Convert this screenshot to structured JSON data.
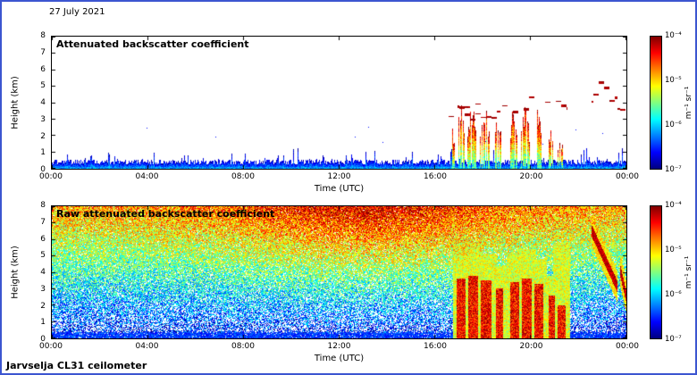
{
  "header": {
    "date": "27 July 2021"
  },
  "footer": {
    "instrument": "Jarvselja CL31 ceilometer"
  },
  "frame": {
    "border_color": "#3c55d0",
    "background": "#ffffff"
  },
  "axes": {
    "xlabel": "Time (UTC)",
    "ylabel": "Height (km)",
    "x_ticks": [
      "00:00",
      "04:00",
      "08:00",
      "12:00",
      "16:00",
      "20:00",
      "00:00"
    ],
    "y_ticks": [
      "0",
      "1",
      "2",
      "3",
      "4",
      "5",
      "6",
      "7",
      "8"
    ]
  },
  "colorbar": {
    "unit": "m⁻¹ sr⁻¹",
    "ticks": [
      "10⁻⁴",
      "10⁻⁵",
      "10⁻⁶",
      "10⁻⁷"
    ],
    "scale_min": 1e-07,
    "scale_max": 0.0001,
    "colormap": "jet",
    "jet_stops_top_to_bottom": [
      "#7f0000",
      "#ff0000",
      "#ff8000",
      "#ffff00",
      "#80ff80",
      "#00ffff",
      "#0080ff",
      "#0000ff",
      "#000080"
    ]
  },
  "chart_data": [
    {
      "type": "heatmap",
      "title": "Attenuated backscatter coefficient",
      "xlabel": "Time (UTC)",
      "ylabel": "Height (km)",
      "x_range_hours": [
        0,
        24
      ],
      "y_range_km": [
        0,
        8
      ],
      "color_scale": {
        "type": "log",
        "min": 1e-07,
        "max": 0.0001,
        "unit": "m-1 sr-1",
        "colormap": "jet"
      },
      "render_seed": 7,
      "features": {
        "aerosol_layer": {
          "start_h": 0,
          "end_h": 24,
          "top_km": 0.4,
          "typical_value": 2e-06
        },
        "plumes": [
          {
            "center_h": 16.75,
            "width_h": 0.2,
            "top_km": 2.2
          },
          {
            "center_h": 17.1,
            "width_h": 0.3,
            "top_km": 3.4
          },
          {
            "center_h": 17.55,
            "width_h": 0.35,
            "top_km": 3.7
          },
          {
            "center_h": 18.1,
            "width_h": 0.4,
            "top_km": 3.5
          },
          {
            "center_h": 18.65,
            "width_h": 0.3,
            "top_km": 3.0
          },
          {
            "center_h": 19.3,
            "width_h": 0.3,
            "top_km": 3.3
          },
          {
            "center_h": 19.8,
            "width_h": 0.35,
            "top_km": 3.6
          },
          {
            "center_h": 20.3,
            "width_h": 0.3,
            "top_km": 3.2
          },
          {
            "center_h": 20.85,
            "width_h": 0.2,
            "top_km": 2.4
          },
          {
            "center_h": 21.25,
            "width_h": 0.2,
            "top_km": 1.8
          }
        ],
        "clouds": [
          {
            "start_h": 16.5,
            "end_h": 21.5,
            "base_km": 3.0,
            "top_km": 4.5,
            "density": 0.5,
            "typical_value": 0.0001
          },
          {
            "start_h": 17.0,
            "end_h": 18.7,
            "base_km": 2.3,
            "top_km": 3.9,
            "density": 0.8,
            "typical_value": 0.0001
          },
          {
            "start_h": 22.6,
            "end_h": 23.6,
            "base_km": 4.0,
            "top_km": 5.3,
            "density": 0.8,
            "typical_value": 8e-05
          },
          {
            "start_h": 23.7,
            "end_h": 24.0,
            "base_km": 3.3,
            "top_km": 4.2,
            "density": 0.8,
            "typical_value": 8e-05
          }
        ]
      }
    },
    {
      "type": "heatmap",
      "title": "Raw attenuated backscatter coefficient",
      "xlabel": "Time (UTC)",
      "ylabel": "Height (km)",
      "x_range_hours": [
        0,
        24
      ],
      "y_range_km": [
        0,
        8
      ],
      "color_scale": {
        "type": "log",
        "min": 1e-07,
        "max": 0.0001,
        "unit": "m-1 sr-1",
        "colormap": "jet"
      },
      "render_seed": 13,
      "noise": {
        "base": 0.1,
        "height_gain": 0.62,
        "day_peak_hour": 13,
        "day_amp": 0.18,
        "white_speckle_low": 0.5
      },
      "features": {
        "boundary_layer_top_km": 0.35,
        "plumes": [
          {
            "center_h": 17.1,
            "width_h": 0.35,
            "top_km": 3.6,
            "halo_km": 2.4
          },
          {
            "center_h": 17.6,
            "width_h": 0.4,
            "top_km": 3.8,
            "halo_km": 2.0
          },
          {
            "center_h": 18.15,
            "width_h": 0.45,
            "top_km": 3.5,
            "halo_km": 1.6
          },
          {
            "center_h": 18.7,
            "width_h": 0.3,
            "top_km": 3.0,
            "halo_km": 1.4
          },
          {
            "center_h": 19.35,
            "width_h": 0.35,
            "top_km": 3.4,
            "halo_km": 1.8
          },
          {
            "center_h": 19.85,
            "width_h": 0.4,
            "top_km": 3.6,
            "halo_km": 1.8
          },
          {
            "center_h": 20.35,
            "width_h": 0.35,
            "top_km": 3.3,
            "halo_km": 1.5
          },
          {
            "center_h": 20.9,
            "width_h": 0.25,
            "top_km": 2.6,
            "halo_km": 1.2
          },
          {
            "center_h": 21.3,
            "width_h": 0.35,
            "top_km": 2.0,
            "halo_km": 3.8
          }
        ],
        "virga": [
          {
            "start_h": 22.55,
            "end_h": 23.65,
            "top_km": 6.6,
            "bottom_km": 3.1
          },
          {
            "start_h": 23.75,
            "end_h": 24.0,
            "top_km": 4.2,
            "bottom_km": 2.6
          }
        ]
      }
    }
  ]
}
